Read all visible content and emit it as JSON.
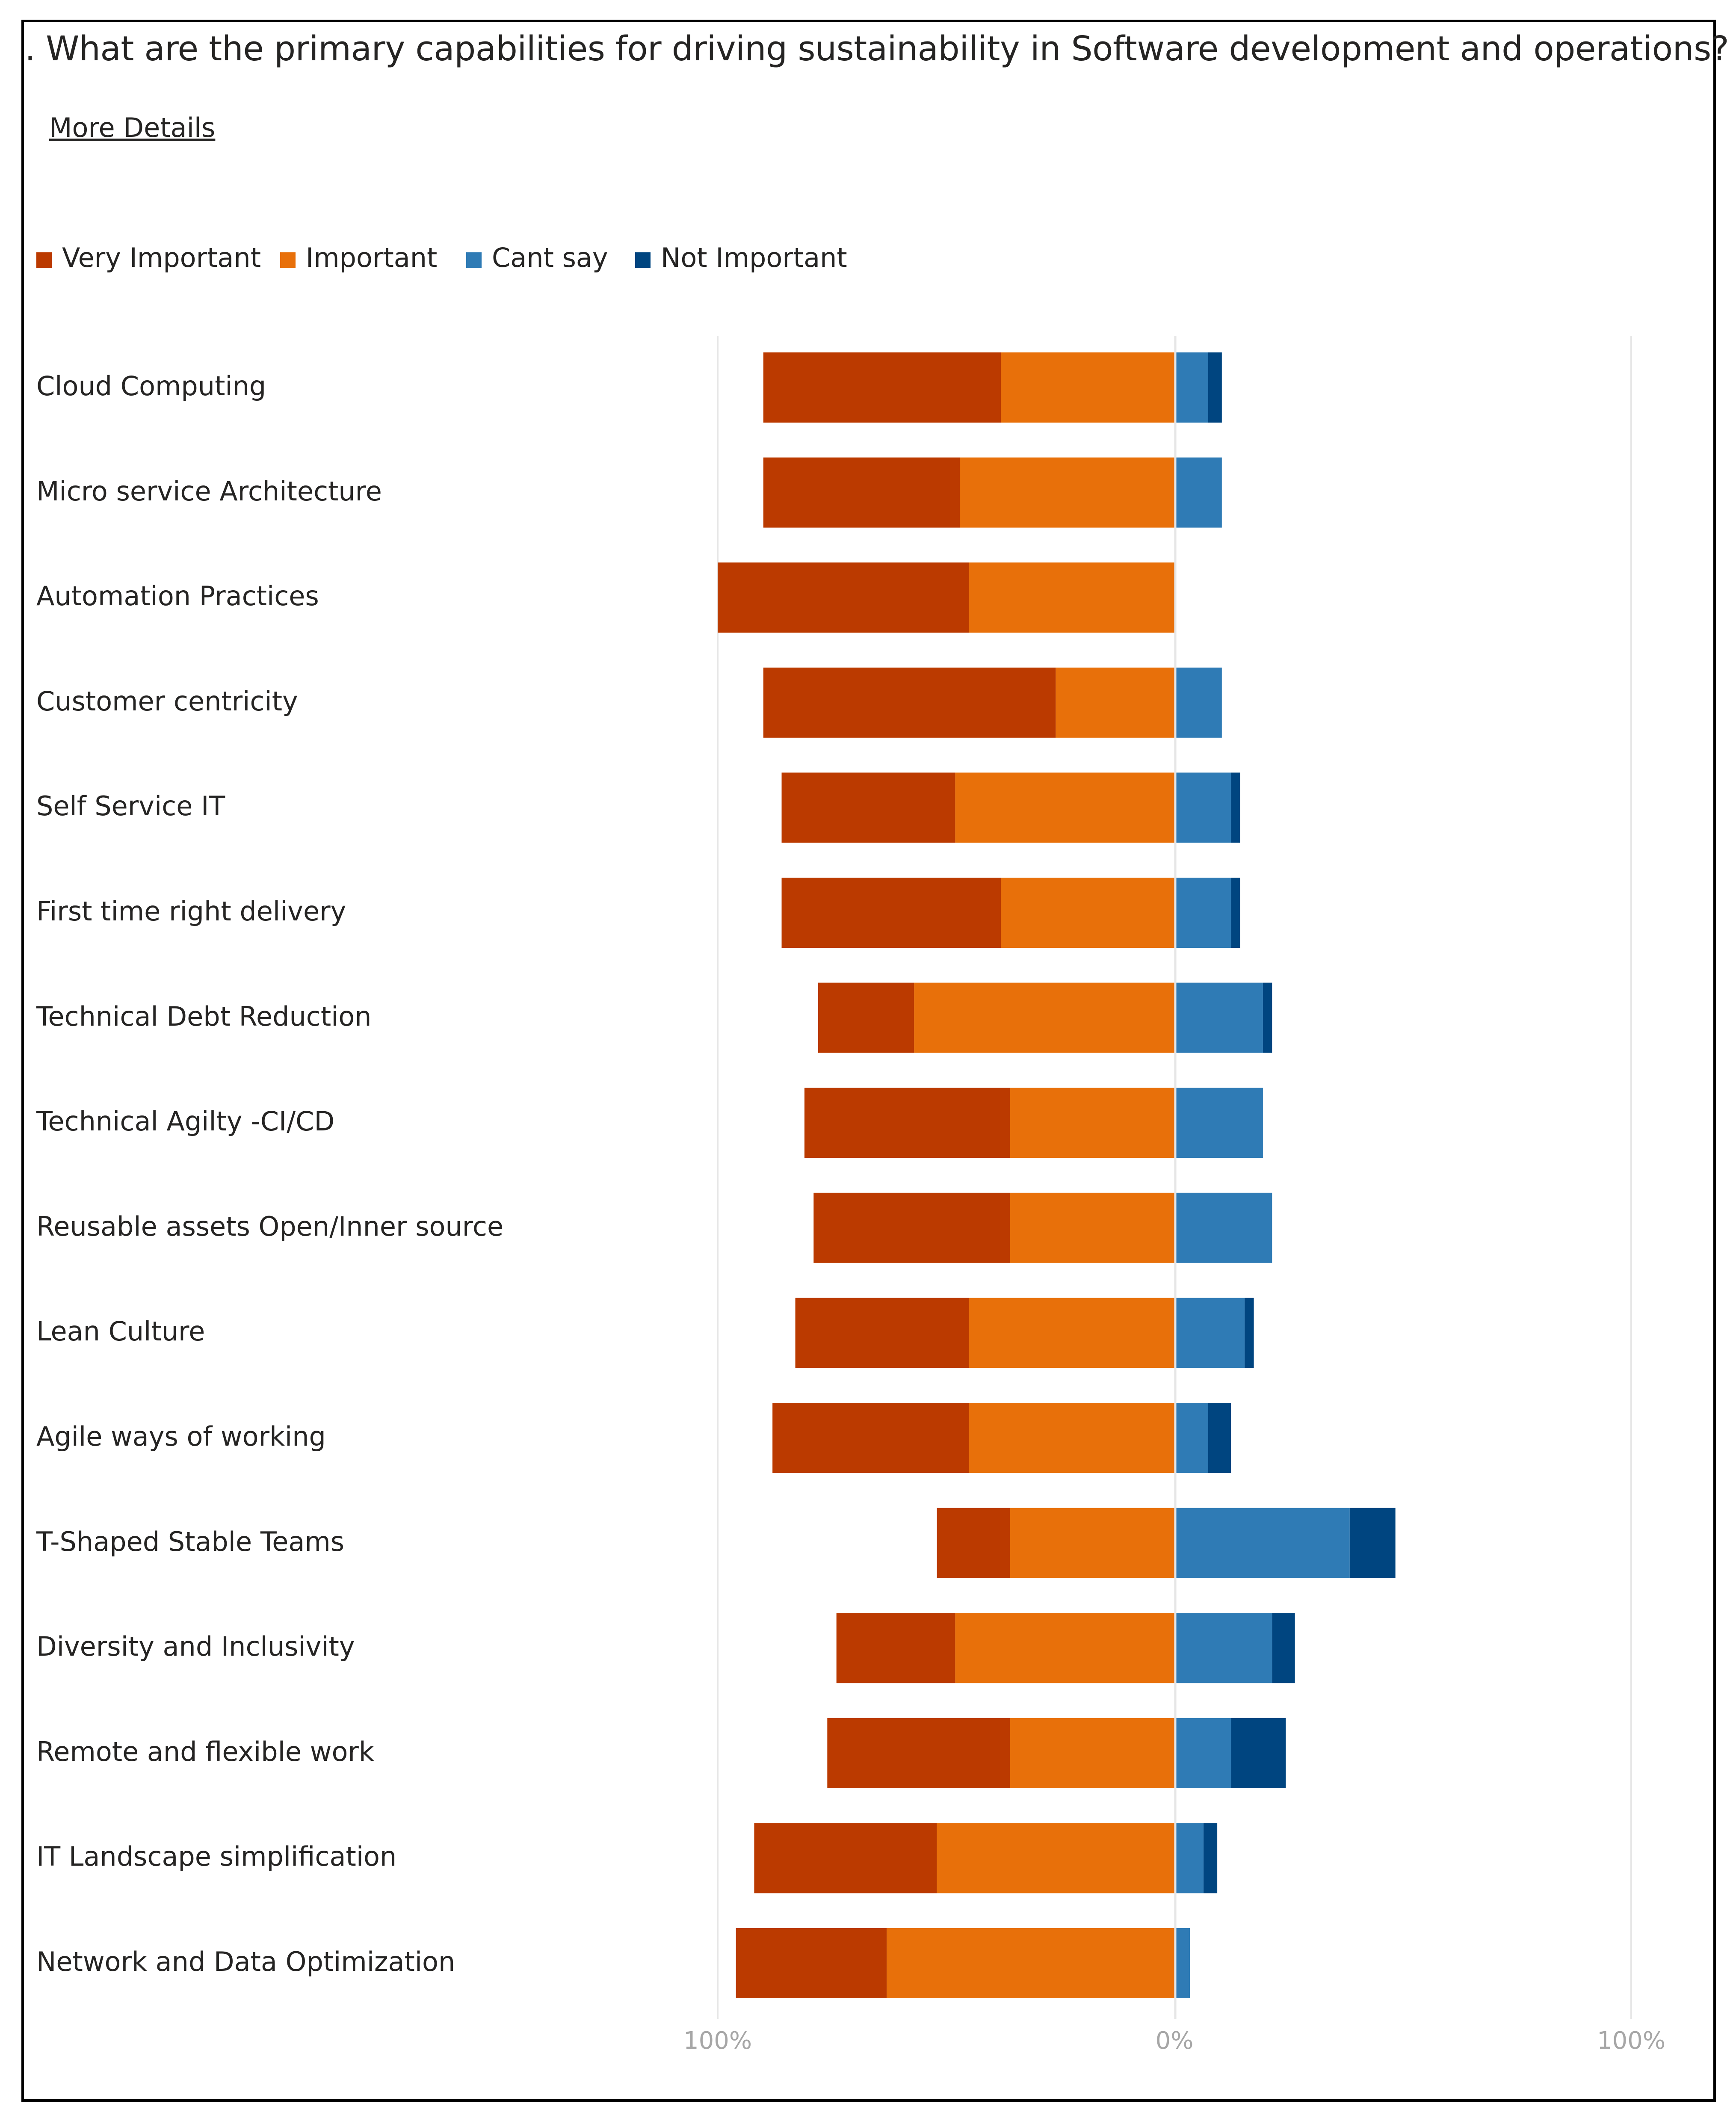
{
  "question": ". What are the primary capabilities for driving sustainability in Software development and operations?",
  "more_details_label": "More Details",
  "colors": {
    "very_important": "#BB3A00",
    "important": "#E8700A",
    "cant_say": "#2F7BB5",
    "not_important": "#004580",
    "gridline": "#e6e6e6",
    "tick": "#a6a6a6"
  },
  "chart_data": {
    "type": "bar",
    "orientation": "horizontal-diverging",
    "title": "What are the primary capabilities for driving sustainability in Software development and operations?",
    "xlabel": "",
    "ylabel": "",
    "xlim": [
      -100,
      100
    ],
    "x_ticks": [
      "100%",
      "0%",
      "100%"
    ],
    "legend_position": "top-left",
    "categories": [
      "Cloud Computing",
      "Micro service Architecture",
      "Automation Practices",
      "Customer centricity",
      "Self Service IT",
      "First time right delivery",
      "Technical Debt Reduction",
      "Technical Agilty -CI/CD",
      "Reusable assets Open/Inner source",
      "Lean Culture",
      "Agile ways of working",
      "T-Shaped Stable Teams",
      "Diversity and Inclusivity",
      "Remote and flexible work",
      "IT Landscape simplification",
      "Network and Data Optimization"
    ],
    "series": [
      {
        "name": "Very Important",
        "side": "left",
        "values": [
          52,
          43,
          55,
          64,
          38,
          48,
          21,
          45,
          43,
          38,
          43,
          16,
          26,
          40,
          40,
          33
        ]
      },
      {
        "name": "Important",
        "side": "left",
        "values": [
          38,
          47,
          45,
          26,
          48,
          38,
          57,
          36,
          36,
          45,
          45,
          36,
          48,
          36,
          52,
          63
        ]
      },
      {
        "name": "Cant say",
        "side": "right",
        "values": [
          7,
          10,
          0,
          10,
          12,
          12,
          19,
          19,
          21,
          15,
          7,
          38,
          21,
          12,
          6,
          3
        ]
      },
      {
        "name": "Not Important",
        "side": "right",
        "values": [
          3,
          0,
          0,
          0,
          2,
          2,
          2,
          0,
          0,
          2,
          5,
          10,
          5,
          12,
          3,
          0
        ]
      }
    ]
  }
}
